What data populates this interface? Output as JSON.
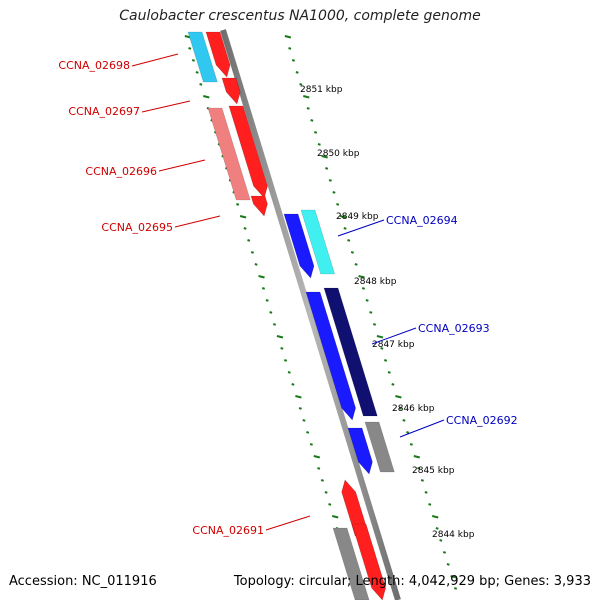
{
  "title": "Caulobacter crescentus NA1000, complete genome",
  "accession": "Accession: NC_011916",
  "summary": "Topology: circular; Length: 4,042,929 bp; Genes: 3,933",
  "colors": {
    "forward_label": "#d00000",
    "reverse_label": "#0000c0",
    "tick": "#1a7a1a",
    "backbone": "#8a8a8a"
  },
  "ticks": [
    "2851 kbp",
    "2850 kbp",
    "2849 kbp",
    "2848 kbp",
    "2847 kbp",
    "2846 kbp",
    "2845 kbp",
    "2844 kbp"
  ],
  "genes_forward": [
    {
      "label": "CCNA_02698",
      "color": "#ff1f1f",
      "cog_color": "#30c8f0"
    },
    {
      "label": "CCNA_02697",
      "color": "#ff1f1f",
      "cog_color": "#f08080"
    },
    {
      "label": "CCNA_02696",
      "color": "#ff1f1f",
      "cog_color": "#f08080"
    },
    {
      "label": "CCNA_02695",
      "color": "#ff1f1f",
      "cog_color": null
    },
    {
      "label": "CCNA_02691",
      "color": "#ff1f1f",
      "cog_color": "#888888"
    }
  ],
  "genes_reverse": [
    {
      "label": "CCNA_02694",
      "color": "#1a1aff",
      "cog_color": "#40f0f0"
    },
    {
      "label": "CCNA_02693",
      "color": "#1a1aff",
      "cog_color": "#101070"
    },
    {
      "label": "CCNA_02692",
      "color": "#1a1aff",
      "cog_color": "#888888"
    }
  ]
}
